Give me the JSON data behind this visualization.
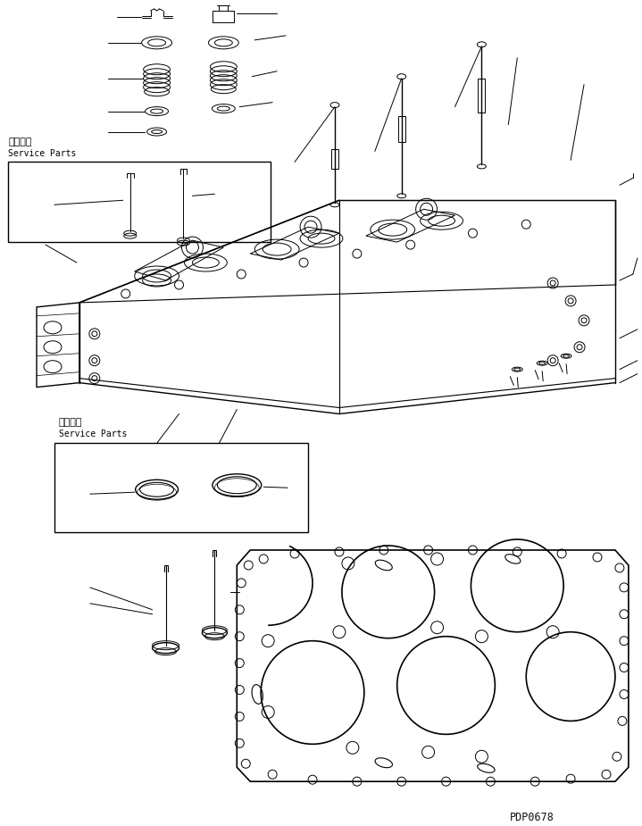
{
  "bg_color": "#ffffff",
  "line_color": "#000000",
  "fig_width": 7.19,
  "fig_height": 9.25,
  "dpi": 100,
  "watermark": "PDP0678",
  "service_parts_ja_1": "補給専用",
  "service_parts_en_1": "Service Parts",
  "service_parts_ja_2": "補給専用",
  "service_parts_en_2": "Service Parts"
}
